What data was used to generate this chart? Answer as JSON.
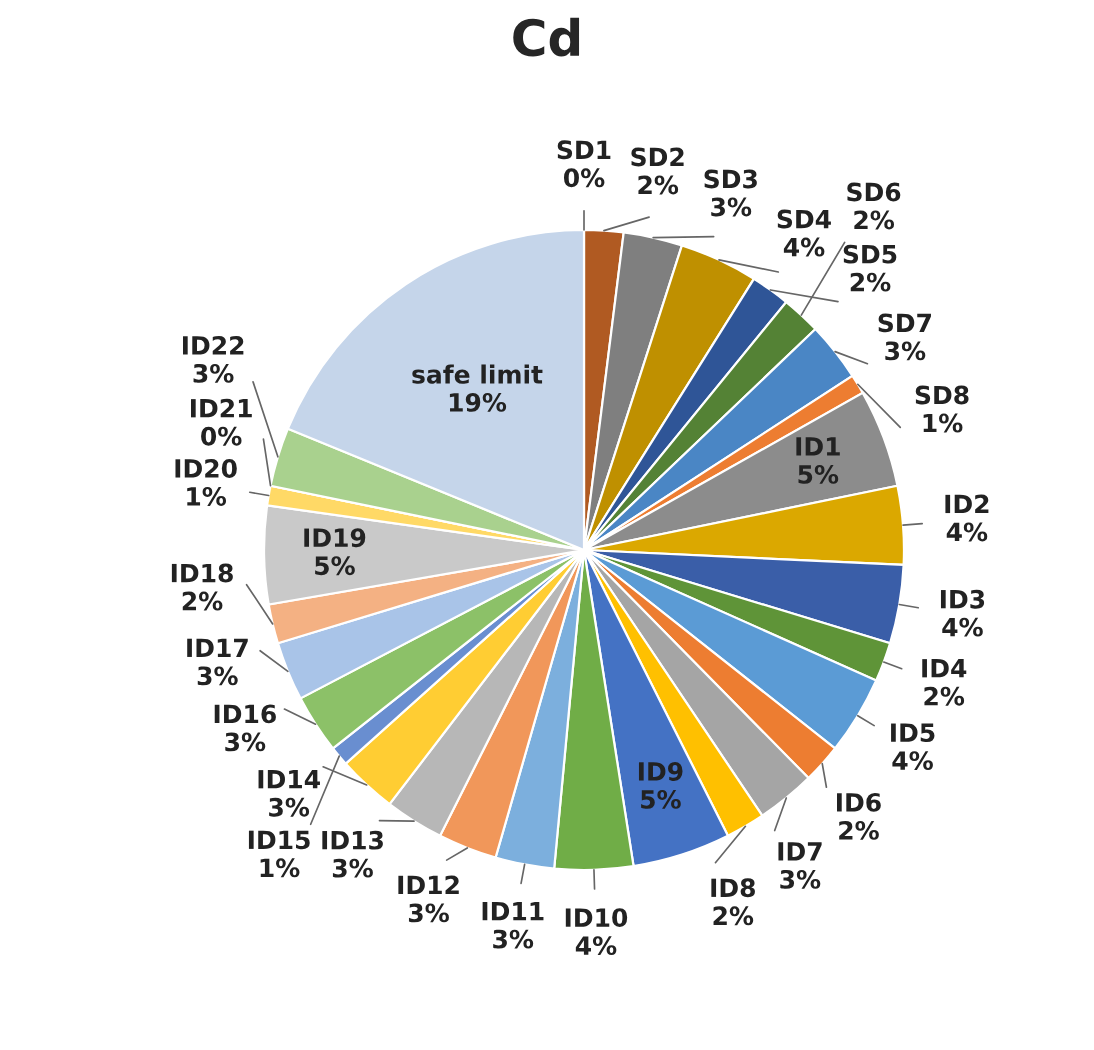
{
  "chart_data": {
    "type": "pie",
    "title": "Cd",
    "categories": [
      "SD1",
      "SD2",
      "SD3",
      "SD4",
      "SD5",
      "SD6",
      "SD7",
      "SD8",
      "ID1",
      "ID2",
      "ID3",
      "ID4",
      "ID5",
      "ID6",
      "ID7",
      "ID8",
      "ID9",
      "ID10",
      "ID11",
      "ID12",
      "ID13",
      "ID14",
      "ID15",
      "ID16",
      "ID17",
      "ID18",
      "ID19",
      "ID20",
      "ID21",
      "ID22",
      "safe limit"
    ],
    "values": [
      0,
      2,
      3,
      4,
      2,
      2,
      3,
      1,
      5,
      4,
      4,
      2,
      4,
      2,
      3,
      2,
      5,
      4,
      3,
      3,
      3,
      3,
      1,
      3,
      3,
      2,
      5,
      1,
      0,
      3,
      19
    ],
    "value_labels": [
      "0%",
      "2%",
      "3%",
      "4%",
      "2%",
      "2%",
      "3%",
      "1%",
      "5%",
      "4%",
      "4%",
      "2%",
      "4%",
      "2%",
      "3%",
      "2%",
      "5%",
      "4%",
      "3%",
      "3%",
      "3%",
      "3%",
      "1%",
      "3%",
      "3%",
      "2%",
      "5%",
      "1%",
      "0%",
      "3%",
      "19%"
    ],
    "colors": [
      "#5b9bd5",
      "#b05a22",
      "#7f7f7f",
      "#bf9000",
      "#2f5597",
      "#548235",
      "#4a86c5",
      "#ed7d31",
      "#8c8c8c",
      "#dba800",
      "#3a5ea8",
      "#5f9438",
      "#5b9bd5",
      "#ed7d31",
      "#a5a5a5",
      "#ffc000",
      "#4472c4",
      "#70ad47",
      "#7cafdd",
      "#f1975a",
      "#b7b7b7",
      "#ffcd33",
      "#698ed0",
      "#8cc168",
      "#a9c4e8",
      "#f4b183",
      "#c9c9c9",
      "#ffd966",
      "#8faadc",
      "#a9d18e",
      "#c5d5ea"
    ],
    "legend": false
  }
}
